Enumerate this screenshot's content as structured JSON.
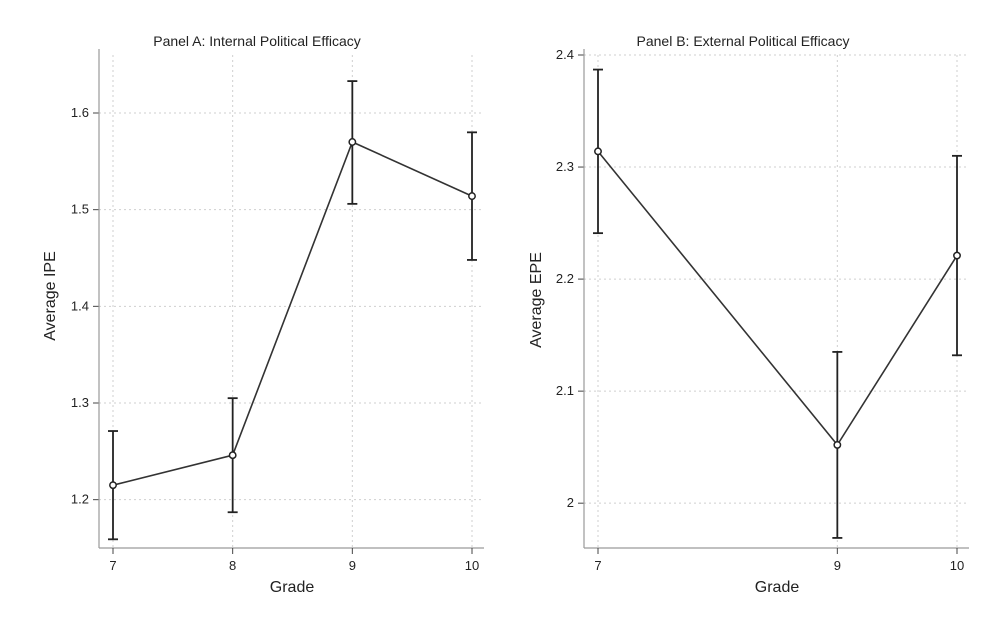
{
  "chart_data": [
    {
      "type": "line",
      "title": "Panel A: Internal Political Efficacy",
      "xlabel": "Grade",
      "ylabel": "Average IPE",
      "x_ticks": [
        7,
        8,
        9,
        10
      ],
      "y_ticks": [
        1.2,
        1.3,
        1.4,
        1.5,
        1.6
      ],
      "xlim": [
        7,
        10
      ],
      "ylim": [
        1.15,
        1.66
      ],
      "grid": true,
      "points": [
        {
          "x": 7,
          "y": 1.215,
          "lo": 1.159,
          "hi": 1.271
        },
        {
          "x": 8,
          "y": 1.246,
          "lo": 1.187,
          "hi": 1.305
        },
        {
          "x": 9,
          "y": 1.57,
          "lo": 1.506,
          "hi": 1.633
        },
        {
          "x": 10,
          "y": 1.514,
          "lo": 1.448,
          "hi": 1.58
        }
      ]
    },
    {
      "type": "line",
      "title": "Panel B: External Political Efficacy",
      "xlabel": "Grade",
      "ylabel": "Average EPE",
      "x_ticks": [
        7,
        9,
        10
      ],
      "y_ticks": [
        2,
        2.1,
        2.2,
        2.3,
        2.4
      ],
      "xlim": [
        7,
        10
      ],
      "ylim": [
        1.96,
        2.4
      ],
      "grid": true,
      "points": [
        {
          "x": 7,
          "y": 2.314,
          "lo": 2.241,
          "hi": 2.387
        },
        {
          "x": 9,
          "y": 2.052,
          "lo": 1.969,
          "hi": 2.135
        },
        {
          "x": 10,
          "y": 2.221,
          "lo": 2.132,
          "hi": 2.31
        }
      ]
    }
  ]
}
